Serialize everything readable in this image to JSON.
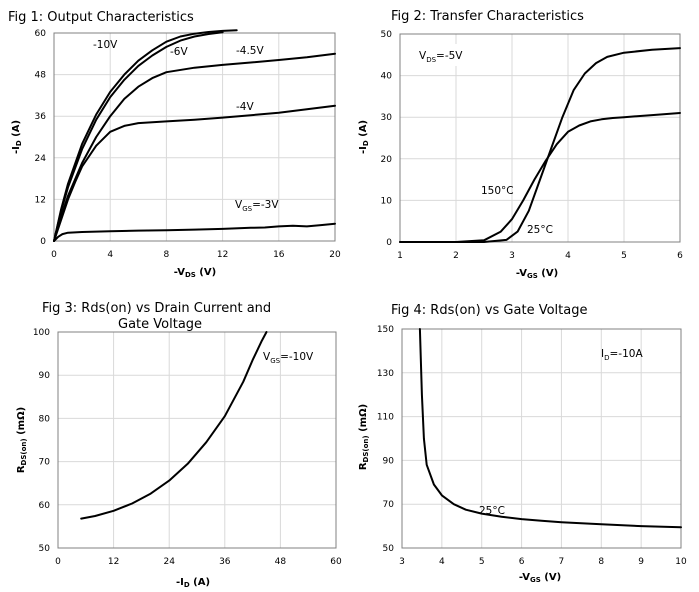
{
  "chart_data": [
    {
      "type": "line",
      "title": "Fig 1: Output Characteristics",
      "xlabel": {
        "main": "-V",
        "sub": "DS",
        "unit": " (V)"
      },
      "ylabel": {
        "main": "-I",
        "sub": "D",
        "unit": " (A)"
      },
      "xlim": [
        0,
        20
      ],
      "ylim": [
        0,
        60
      ],
      "xticks": [
        0,
        4,
        8,
        12,
        16,
        20
      ],
      "yticks": [
        0,
        12,
        24,
        36,
        48,
        60
      ],
      "grid": true,
      "series": [
        {
          "name": "-10V",
          "x": [
            0,
            0.5,
            1,
            2,
            3,
            4,
            5,
            6,
            7,
            8,
            9,
            10,
            11,
            12,
            13
          ],
          "y": [
            0,
            9,
            16.5,
            28,
            36.5,
            43,
            48,
            52,
            55,
            57.5,
            59,
            59.8,
            60.3,
            60.6,
            60.8
          ]
        },
        {
          "name": "-6V",
          "x": [
            0,
            0.5,
            1,
            2,
            3,
            4,
            5,
            6,
            7,
            8,
            9,
            10,
            11,
            12
          ],
          "y": [
            0,
            8.5,
            15.5,
            26.5,
            35,
            41.5,
            46.5,
            50.5,
            53.5,
            56,
            57.8,
            59,
            59.7,
            60.2
          ]
        },
        {
          "name": "-4.5V",
          "x": [
            0,
            0.5,
            1,
            2,
            3,
            4,
            5,
            6,
            7,
            8,
            10,
            12,
            14,
            16,
            18,
            20
          ],
          "y": [
            0,
            7,
            13,
            22.5,
            30,
            36,
            41,
            44.5,
            47,
            48.7,
            50,
            50.8,
            51.5,
            52.2,
            53,
            54
          ]
        },
        {
          "name": "-4V",
          "x": [
            0,
            0.5,
            1,
            1.5,
            2,
            3,
            4,
            5,
            6,
            8,
            10,
            12,
            14,
            16,
            18,
            20
          ],
          "y": [
            0,
            6,
            12,
            17,
            21.5,
            27.5,
            31.5,
            33.2,
            34,
            34.5,
            35,
            35.6,
            36.3,
            37,
            38,
            39
          ]
        },
        {
          "name": "-3V",
          "x": [
            0,
            0.3,
            0.6,
            1,
            2,
            4,
            6,
            8,
            10,
            12,
            14,
            15,
            16,
            17,
            18,
            19,
            20
          ],
          "y": [
            0,
            1.2,
            2,
            2.4,
            2.6,
            2.8,
            3,
            3.1,
            3.3,
            3.5,
            3.8,
            3.9,
            4.2,
            4.4,
            4.2,
            4.6,
            5
          ]
        }
      ],
      "annotations": [
        {
          "text": "-10V"
        },
        {
          "text": "-6V"
        },
        {
          "text": "-4.5V"
        },
        {
          "text": "-4V"
        },
        {
          "main": "V",
          "sub": "GS",
          "rest": "=-3V"
        }
      ]
    },
    {
      "type": "line",
      "title": "Fig 2: Transfer Characteristics",
      "xlabel": {
        "main": "-V",
        "sub": "GS",
        "unit": " (V)"
      },
      "ylabel": {
        "main": "-I",
        "sub": "D",
        "unit": " (A)"
      },
      "xlim": [
        1,
        6
      ],
      "ylim": [
        0,
        50
      ],
      "xticks": [
        1,
        2,
        3,
        4,
        5,
        6
      ],
      "yticks": [
        0,
        10,
        20,
        30,
        40,
        50
      ],
      "grid": true,
      "series": [
        {
          "name": "150°C",
          "x": [
            1,
            2,
            2.5,
            2.8,
            3,
            3.2,
            3.4,
            3.6,
            3.8,
            4,
            4.2,
            4.4,
            4.6,
            4.8,
            5,
            5.5,
            6
          ],
          "y": [
            0,
            0,
            0.4,
            2.5,
            5.5,
            10,
            15,
            19.5,
            23.5,
            26.5,
            28,
            29,
            29.5,
            29.8,
            30,
            30.5,
            31
          ]
        },
        {
          "name": "25°C",
          "x": [
            1,
            2.5,
            2.9,
            3.1,
            3.3,
            3.5,
            3.7,
            3.9,
            4.1,
            4.3,
            4.5,
            4.7,
            5,
            5.5,
            6
          ],
          "y": [
            0,
            0,
            0.5,
            2.5,
            7.5,
            15,
            22.5,
            30,
            36.5,
            40.5,
            43,
            44.5,
            45.5,
            46.2,
            46.6
          ]
        }
      ],
      "annotations": [
        {
          "main": "V",
          "sub": "DS",
          "rest": "=-5V"
        },
        {
          "text": "150°C"
        },
        {
          "text": "25°C"
        }
      ]
    },
    {
      "type": "line",
      "title": "Fig 3: Rds(on) vs Drain Current and Gate Voltage",
      "title_lines": [
        "Fig 3: Rds(on) vs Drain Current and",
        "Gate Voltage"
      ],
      "xlabel": {
        "main": "-I",
        "sub": "D",
        "unit": " (A)"
      },
      "ylabel": {
        "main": "R",
        "sub": "DS(on)",
        "unit": " (mΩ)"
      },
      "xlim": [
        0,
        60
      ],
      "ylim": [
        50,
        100
      ],
      "xticks": [
        0,
        12,
        24,
        36,
        48,
        60
      ],
      "yticks": [
        50,
        60,
        70,
        80,
        90,
        100
      ],
      "grid": true,
      "series": [
        {
          "name": "VGS=-10V",
          "x": [
            5,
            8,
            12,
            16,
            20,
            24,
            28,
            32,
            36,
            40,
            42,
            44,
            45
          ],
          "y": [
            56.8,
            57.4,
            58.6,
            60.3,
            62.6,
            65.6,
            69.5,
            74.5,
            80.5,
            88.5,
            93.5,
            98,
            100
          ]
        }
      ],
      "annotations": [
        {
          "main": "V",
          "sub": "GS",
          "rest": "=-10V"
        }
      ]
    },
    {
      "type": "line",
      "title": "Fig 4: Rds(on) vs Gate Voltage",
      "xlabel": {
        "main": "-V",
        "sub": "GS",
        "unit": " (V)"
      },
      "ylabel": {
        "main": "R",
        "sub": "DS(on)",
        "unit": " (mΩ)"
      },
      "xlim": [
        3,
        10
      ],
      "ylim": [
        50,
        150
      ],
      "xticks": [
        3,
        4,
        5,
        6,
        7,
        8,
        9,
        10
      ],
      "yticks": [
        50,
        70,
        90,
        110,
        130,
        150
      ],
      "grid": true,
      "series": [
        {
          "name": "25°C",
          "x": [
            3.45,
            3.5,
            3.55,
            3.62,
            3.8,
            4,
            4.3,
            4.6,
            5,
            5.5,
            6,
            6.5,
            7,
            8,
            9,
            10
          ],
          "y": [
            150,
            120,
            100,
            88,
            79,
            74,
            70,
            67.5,
            65.7,
            64.3,
            63.2,
            62.4,
            61.8,
            60.8,
            60,
            59.5
          ]
        }
      ],
      "annotations": [
        {
          "main": "I",
          "sub": "D",
          "rest": "=-10A"
        },
        {
          "text": "25°C"
        }
      ]
    }
  ],
  "colors": {
    "line": "#000000",
    "grid": "#d9d9d9",
    "axis": "#808080",
    "label_bg": "#ffffff"
  }
}
